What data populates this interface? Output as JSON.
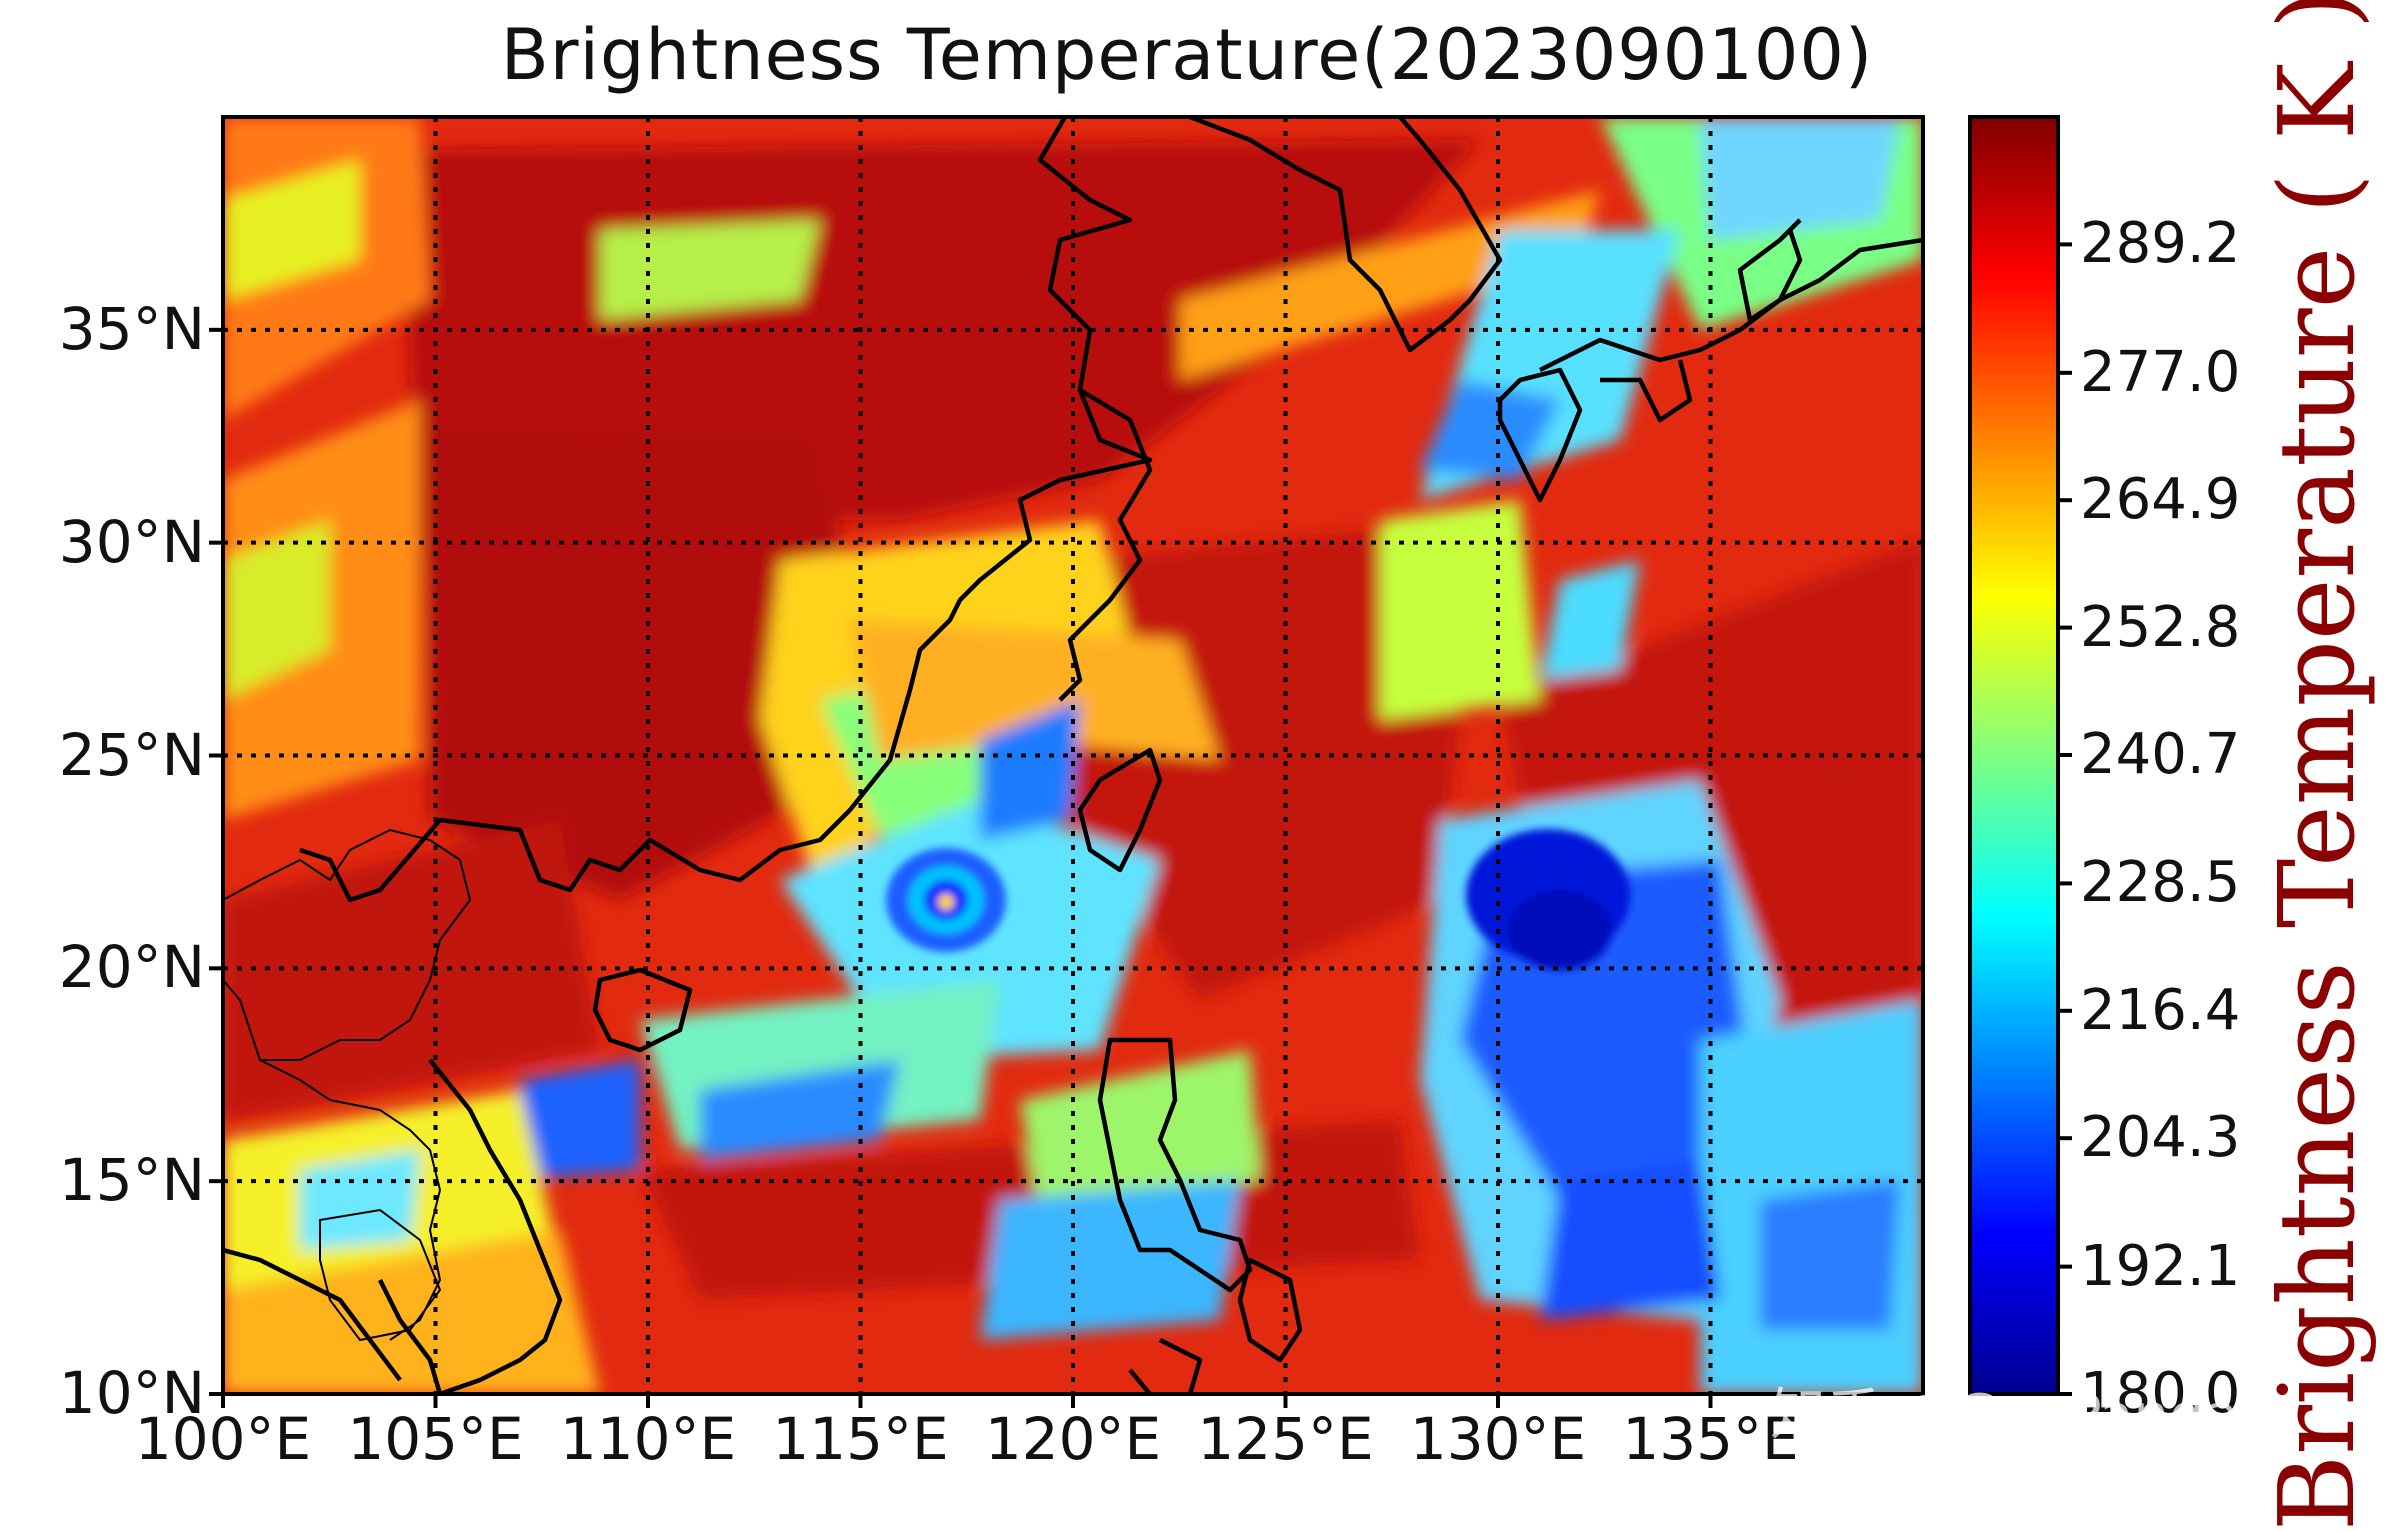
{
  "title": "Brightness Temperature(2023090100)",
  "map": {
    "lon_range": [
      100,
      140
    ],
    "lat_range": [
      10,
      40
    ],
    "x_ticks": [
      {
        "value": 100,
        "label": "100°E"
      },
      {
        "value": 105,
        "label": "105°E"
      },
      {
        "value": 110,
        "label": "110°E"
      },
      {
        "value": 115,
        "label": "115°E"
      },
      {
        "value": 120,
        "label": "120°E"
      },
      {
        "value": 125,
        "label": "125°E"
      },
      {
        "value": 130,
        "label": "130°E"
      },
      {
        "value": 135,
        "label": "135°E"
      }
    ],
    "y_ticks": [
      {
        "value": 10,
        "label": "10°N"
      },
      {
        "value": 15,
        "label": "15°N"
      },
      {
        "value": 20,
        "label": "20°N"
      },
      {
        "value": 25,
        "label": "25°N"
      },
      {
        "value": 30,
        "label": "30°N"
      },
      {
        "value": 35,
        "label": "35°N"
      }
    ],
    "gridlines": "dotted",
    "colormap": "jet",
    "features": [
      {
        "name": "typhoon-eye",
        "lon": 117,
        "lat": 21.5
      },
      {
        "name": "deep-convection",
        "lon": 131,
        "lat": 21
      }
    ]
  },
  "colorbar": {
    "label": "Brightness Temperature ( K )",
    "range": [
      180.0,
      301.3
    ],
    "tick_labels": [
      "180.0",
      "192.1",
      "204.3",
      "216.4",
      "228.5",
      "240.7",
      "252.8",
      "264.9",
      "277.0",
      "289.2"
    ],
    "tick_values": [
      180.0,
      192.1,
      204.3,
      216.4,
      228.5,
      240.7,
      252.8,
      264.9,
      277.0,
      289.2
    ],
    "colors": [
      "#00008f",
      "#0000ff",
      "#0080ff",
      "#00ffff",
      "#80ff80",
      "#ffff00",
      "#ff8000",
      "#ff0000",
      "#800000"
    ]
  },
  "watermark": "知乎 @GeoPanda"
}
